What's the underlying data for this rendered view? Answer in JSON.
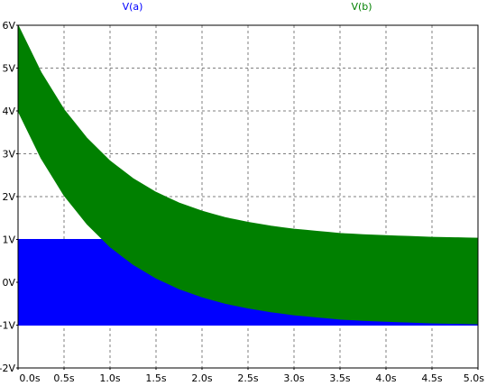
{
  "chart_data": {
    "type": "area",
    "title": "",
    "xlabel": "",
    "ylabel": "",
    "xlim": [
      0,
      5
    ],
    "ylim": [
      -2,
      6
    ],
    "grid": true,
    "legend_position": "top",
    "x_ticks": [
      0,
      0.5,
      1,
      1.5,
      2,
      2.5,
      3,
      3.5,
      4,
      4.5,
      5
    ],
    "x_tick_labels": [
      "0.0s",
      "0.5s",
      "1.0s",
      "1.5s",
      "2.0s",
      "2.5s",
      "3.0s",
      "3.5s",
      "4.0s",
      "4.5s",
      "5.0s"
    ],
    "y_ticks": [
      6,
      5,
      4,
      3,
      2,
      1,
      0,
      -1,
      -2
    ],
    "y_tick_labels": [
      "6V",
      "5V",
      "4V",
      "3V",
      "2V",
      "1V",
      "0V",
      "-1V",
      "-2V"
    ],
    "series": [
      {
        "name": "V(a)",
        "color": "#0000ff",
        "band": true,
        "x": [
          0,
          5
        ],
        "upper": [
          1,
          1
        ],
        "lower": [
          -1,
          -1
        ]
      },
      {
        "name": "V(b)",
        "color": "#008000",
        "band": true,
        "x": [
          0,
          0.25,
          0.5,
          0.75,
          1,
          1.25,
          1.5,
          1.75,
          2,
          2.25,
          2.5,
          2.75,
          3,
          3.25,
          3.5,
          3.75,
          4,
          4.25,
          4.5,
          4.75,
          5
        ],
        "upper": [
          6,
          4.9,
          4.03,
          3.36,
          2.83,
          2.42,
          2.1,
          1.85,
          1.66,
          1.51,
          1.4,
          1.31,
          1.24,
          1.19,
          1.14,
          1.11,
          1.09,
          1.07,
          1.05,
          1.04,
          1.03
        ],
        "lower": [
          4,
          2.9,
          2.03,
          1.36,
          0.83,
          0.42,
          0.1,
          -0.15,
          -0.34,
          -0.49,
          -0.6,
          -0.69,
          -0.76,
          -0.81,
          -0.86,
          -0.89,
          -0.91,
          -0.93,
          -0.95,
          -0.96,
          -0.97
        ]
      }
    ]
  }
}
